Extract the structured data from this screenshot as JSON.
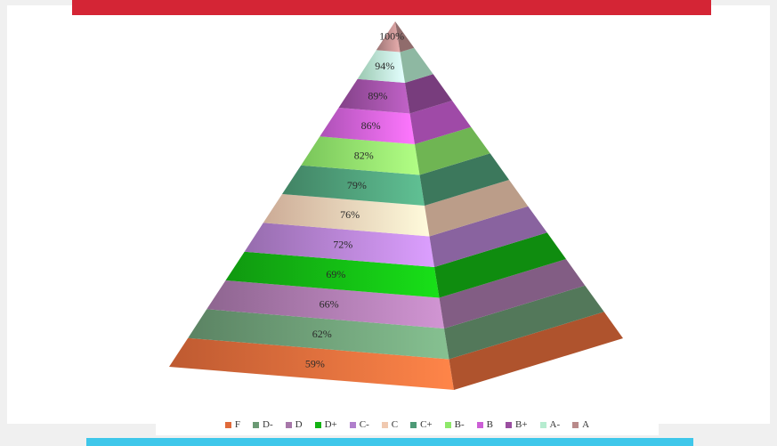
{
  "chart_data": {
    "type": "pyramid",
    "title": "",
    "series": [
      {
        "name": "F",
        "value": "59%",
        "color": "#e06a3a"
      },
      {
        "name": "D-",
        "value": "62%",
        "color": "#6b9a74"
      },
      {
        "name": "D",
        "value": "66%",
        "color": "#a777a9"
      },
      {
        "name": "D+",
        "value": "69%",
        "color": "#13b313"
      },
      {
        "name": "C-",
        "value": "72%",
        "color": "#b07fcc"
      },
      {
        "name": "C",
        "value": "76%",
        "color": "#f0c9b0"
      },
      {
        "name": "C+",
        "value": "79%",
        "color": "#4d9a76"
      },
      {
        "name": "B-",
        "value": "82%",
        "color": "#8ee86a"
      },
      {
        "name": "B",
        "value": "86%",
        "color": "#cc5fd6"
      },
      {
        "name": "B+",
        "value": "89%",
        "color": "#9a4ea0"
      },
      {
        "name": "A-",
        "value": "94%",
        "color": "#b6ecd0"
      },
      {
        "name": "A",
        "value": "100%",
        "color": "#b98a8a"
      }
    ],
    "legend_position": "bottom"
  },
  "theme": {
    "top_bar_color": "#d42535",
    "bottom_bar_color": "#3fc7ea"
  }
}
